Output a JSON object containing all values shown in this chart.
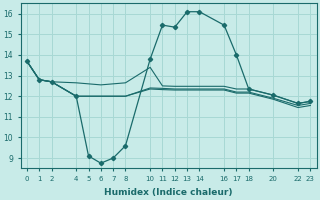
{
  "xlabel": "Humidex (Indice chaleur)",
  "bg_color": "#c8ebe8",
  "grid_color": "#a8d8d4",
  "line_color": "#1a6b6b",
  "xlim": [
    -0.5,
    23.5
  ],
  "ylim": [
    8.5,
    16.5
  ],
  "yticks": [
    9,
    10,
    11,
    12,
    13,
    14,
    15,
    16
  ],
  "xticks": [
    0,
    1,
    2,
    4,
    5,
    6,
    7,
    8,
    10,
    11,
    12,
    13,
    14,
    16,
    17,
    18,
    20,
    22,
    23
  ],
  "xtick_labels": [
    "0",
    "1",
    "2",
    "4",
    "5",
    "6",
    "7",
    "8",
    "10",
    "11",
    "12",
    "13",
    "14",
    "16",
    "17",
    "18",
    "20",
    "22",
    "23"
  ],
  "line1_x": [
    0,
    1,
    2,
    4,
    5,
    6,
    7,
    8,
    10,
    11,
    12,
    13,
    14,
    16,
    17,
    18,
    20,
    22,
    23
  ],
  "line1_y": [
    13.7,
    12.8,
    12.7,
    12.0,
    9.1,
    8.75,
    9.0,
    9.6,
    13.8,
    15.45,
    15.35,
    16.1,
    16.1,
    15.45,
    14.0,
    12.35,
    12.05,
    11.65,
    11.75
  ],
  "line2_x": [
    0,
    1,
    2,
    4,
    5,
    6,
    7,
    8,
    10,
    11,
    12,
    13,
    14,
    16,
    17,
    18,
    20,
    22,
    23
  ],
  "line2_y": [
    13.7,
    12.8,
    12.7,
    12.65,
    12.6,
    12.55,
    12.6,
    12.65,
    13.4,
    12.5,
    12.48,
    12.48,
    12.48,
    12.48,
    12.35,
    12.35,
    12.05,
    11.65,
    11.75
  ],
  "line3_x": [
    0,
    1,
    2,
    4,
    5,
    6,
    7,
    8,
    10,
    11,
    12,
    13,
    14,
    16,
    17,
    18,
    20,
    22,
    23
  ],
  "line3_y": [
    13.7,
    12.8,
    12.7,
    12.0,
    12.0,
    12.0,
    12.0,
    12.0,
    12.4,
    12.38,
    12.35,
    12.35,
    12.35,
    12.35,
    12.2,
    12.2,
    11.9,
    11.55,
    11.65
  ],
  "line4_x": [
    0,
    1,
    2,
    4,
    5,
    6,
    7,
    8,
    10,
    11,
    12,
    13,
    14,
    16,
    17,
    18,
    20,
    22,
    23
  ],
  "line4_y": [
    13.7,
    12.8,
    12.7,
    12.0,
    12.0,
    12.0,
    12.0,
    12.0,
    12.35,
    12.32,
    12.3,
    12.3,
    12.3,
    12.3,
    12.15,
    12.15,
    11.85,
    11.45,
    11.55
  ]
}
